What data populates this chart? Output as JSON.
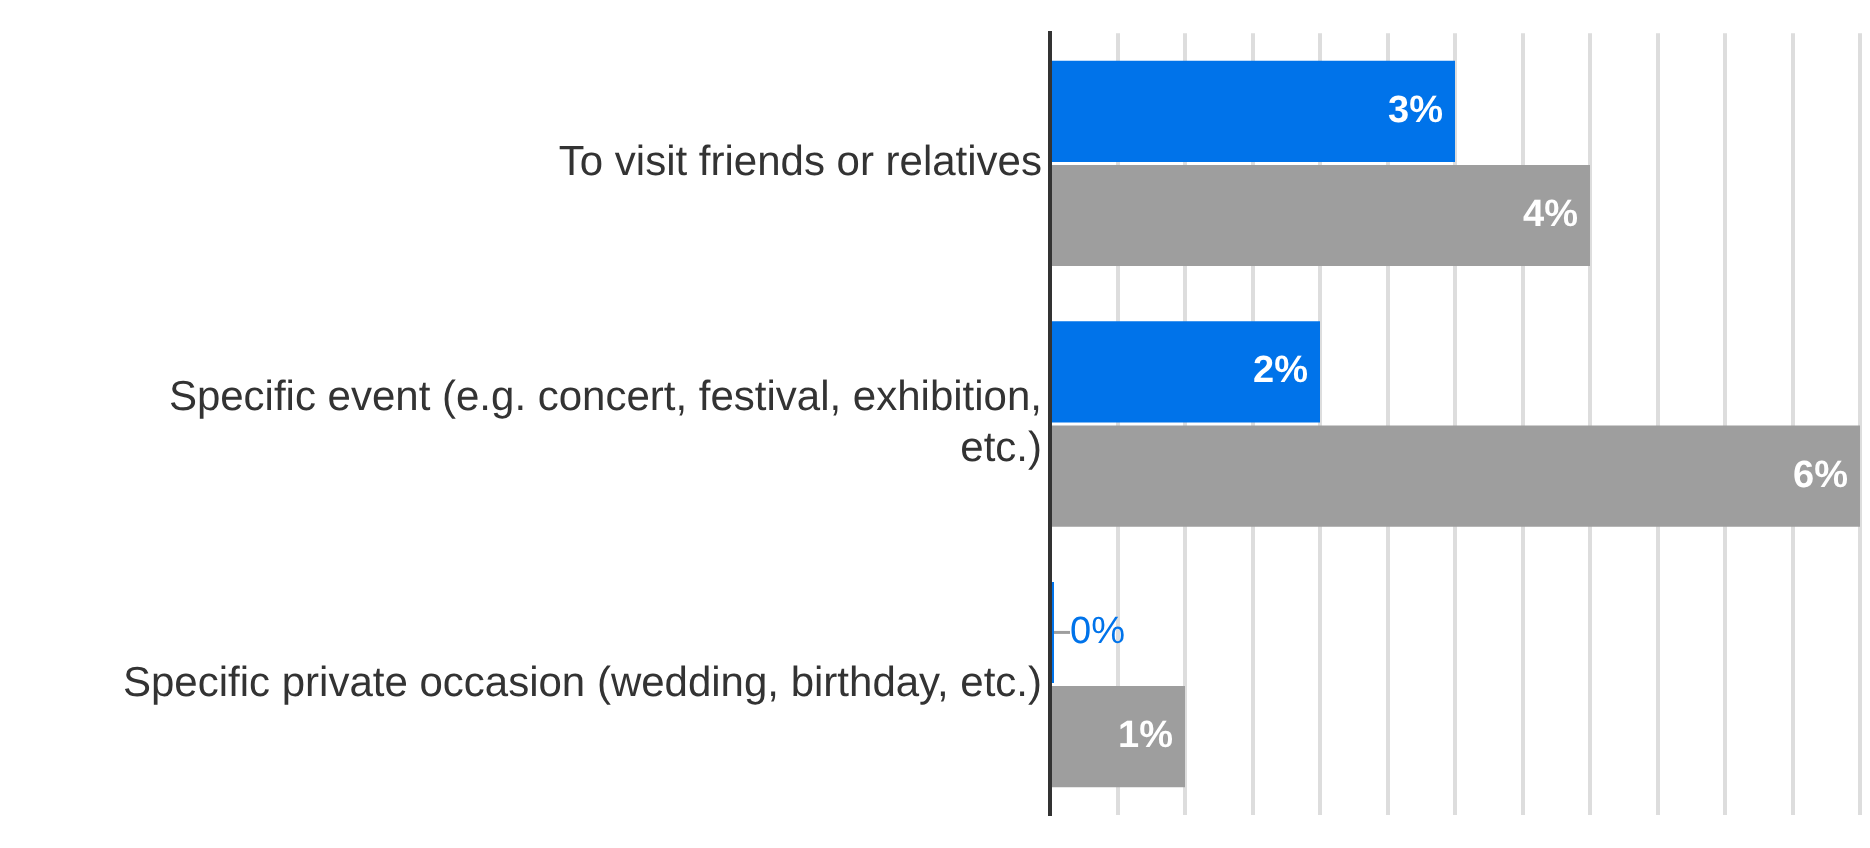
{
  "chart_data": {
    "type": "bar",
    "orientation": "horizontal",
    "categories": [
      "To visit friends or relatives",
      "Specific event (e.g. concert, festival, exhibition, etc.)",
      "Specific private occasion (wedding, birthday, etc.)"
    ],
    "series": [
      {
        "color": "#0073ea",
        "values": [
          3,
          2,
          0
        ],
        "value_labels": [
          "3%",
          "2%",
          "0%"
        ]
      },
      {
        "color": "#9e9e9e",
        "values": [
          4,
          6,
          1
        ],
        "value_labels": [
          "4%",
          "6%",
          "1%"
        ]
      }
    ],
    "xlim": [
      0,
      6
    ],
    "xticks": [
      {
        "value": 0,
        "label": null
      },
      {
        "value": 0.5,
        "label": null
      },
      {
        "value": 1,
        "label": null
      },
      {
        "value": 1.5,
        "label": null
      },
      {
        "value": 2,
        "label": null
      },
      {
        "value": 2.5,
        "label": null
      },
      {
        "value": 3,
        "label": null
      },
      {
        "value": 3.5,
        "label": null
      },
      {
        "value": 4,
        "label": null
      },
      {
        "value": 4.5,
        "label": null
      },
      {
        "value": 5,
        "label": null
      },
      {
        "value": 5.5,
        "label": null
      },
      {
        "value": 6,
        "label": null
      }
    ],
    "grid": "x",
    "legend": false,
    "tick_labels": "y"
  }
}
